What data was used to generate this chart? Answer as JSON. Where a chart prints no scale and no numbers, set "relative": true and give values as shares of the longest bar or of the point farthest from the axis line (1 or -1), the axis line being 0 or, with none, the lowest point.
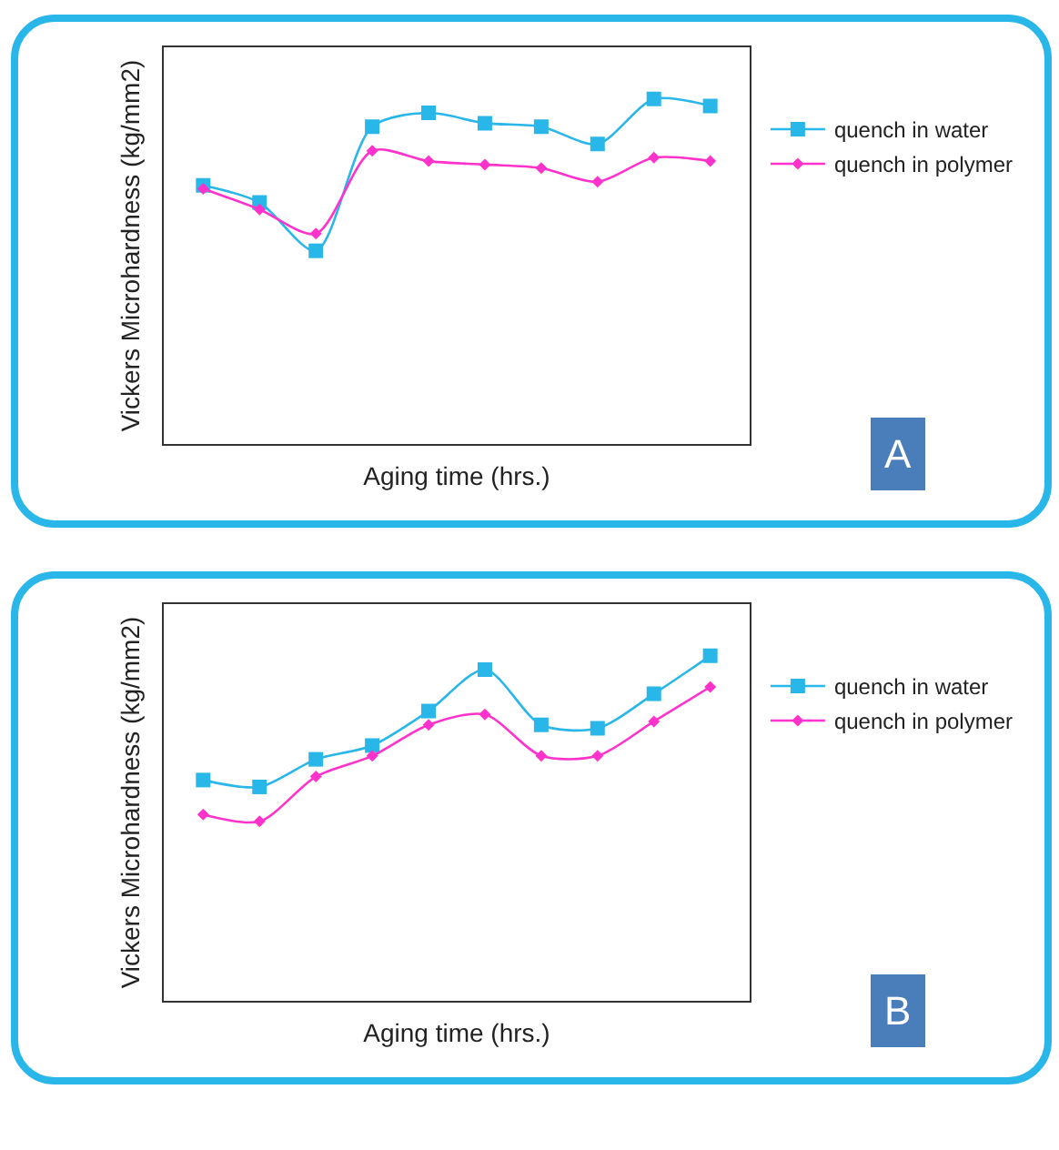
{
  "chart_data": [
    {
      "type": "line",
      "relative": true,
      "xlabel": "Aging time (hrs.)",
      "ylabel": "Vickers Microhardness (kg/mm2)",
      "categories": [
        null,
        null,
        null,
        null,
        null,
        null,
        null,
        null,
        null,
        null
      ],
      "legend": "right",
      "line_style": "solid",
      "annotations": [
        "A"
      ],
      "series": [
        {
          "name": "quench in water",
          "color": "#29b6e8",
          "marker": "square",
          "values": [
            0.75,
            0.7,
            0.56,
            0.92,
            0.96,
            0.93,
            0.92,
            0.87,
            1,
            0.98
          ]
        },
        {
          "name": "quench in polymer",
          "color": "#ff33cc",
          "marker": "diamond",
          "values": [
            0.74,
            0.68,
            0.61,
            0.85,
            0.82,
            0.81,
            0.8,
            0.76,
            0.83,
            0.82
          ]
        }
      ]
    },
    {
      "type": "line",
      "relative": true,
      "xlabel": "Aging time (hrs.)",
      "ylabel": "Vickers Microhardness (kg/mm2)",
      "categories": [
        null,
        null,
        null,
        null,
        null,
        null,
        null,
        null,
        null,
        null
      ],
      "legend": "right",
      "line_style": "solid",
      "annotations": [
        "B"
      ],
      "series": [
        {
          "name": "quench in water",
          "color": "#29b6e8",
          "marker": "square",
          "values": [
            0.64,
            0.62,
            0.7,
            0.74,
            0.84,
            0.96,
            0.8,
            0.79,
            0.89,
            1
          ]
        },
        {
          "name": "quench in polymer",
          "color": "#ff33cc",
          "marker": "diamond",
          "values": [
            0.54,
            0.52,
            0.65,
            0.71,
            0.8,
            0.83,
            0.71,
            0.71,
            0.81,
            0.91
          ]
        }
      ]
    }
  ]
}
